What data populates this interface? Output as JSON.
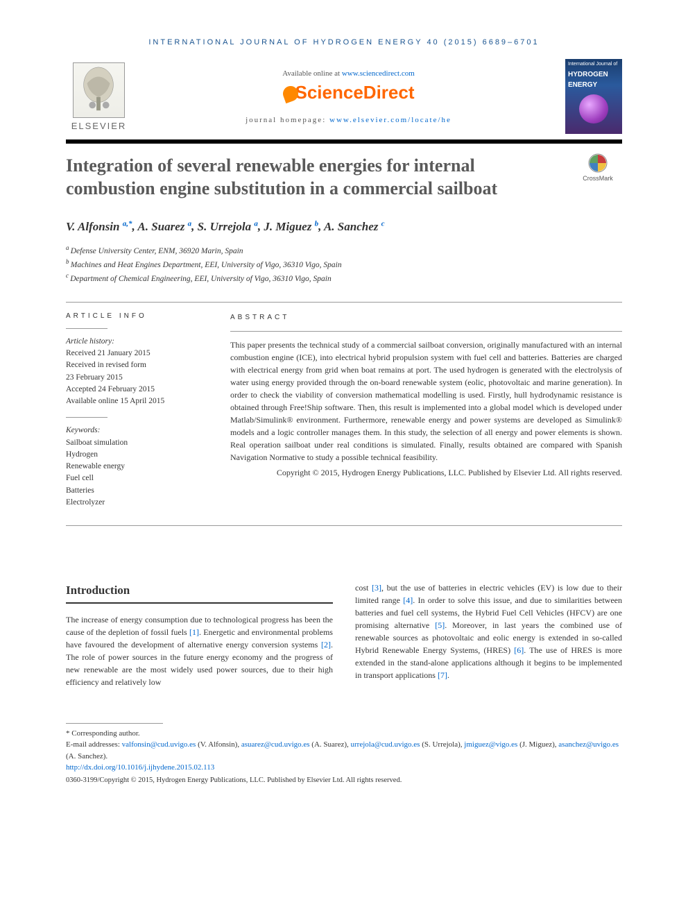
{
  "journal_header": "INTERNATIONAL JOURNAL OF HYDROGEN ENERGY 40 (2015) 6689–6701",
  "available_prefix": "Available online at ",
  "available_url": "www.sciencedirect.com",
  "sd_brand": "ScienceDirect",
  "homepage_prefix": "journal homepage: ",
  "homepage_url": "www.elsevier.com/locate/he",
  "elsevier_name": "ELSEVIER",
  "cover_top": "International Journal of",
  "cover_main1": "HYDROGEN",
  "cover_main2": "ENERGY",
  "title": "Integration of several renewable energies for internal combustion engine substitution in a commercial sailboat",
  "crossmark_label": "CrossMark",
  "authors": [
    {
      "name": "V. Alfonsin",
      "sup": "a,*"
    },
    {
      "name": "A. Suarez",
      "sup": "a"
    },
    {
      "name": "S. Urrejola",
      "sup": "a"
    },
    {
      "name": "J. Miguez",
      "sup": "b"
    },
    {
      "name": "A. Sanchez",
      "sup": "c"
    }
  ],
  "affiliations": [
    {
      "sup": "a",
      "text": "Defense University Center, ENM, 36920 Marin, Spain"
    },
    {
      "sup": "b",
      "text": "Machines and Heat Engines Department, EEI, University of Vigo, 36310 Vigo, Spain"
    },
    {
      "sup": "c",
      "text": "Department of Chemical Engineering, EEI, University of Vigo, 36310 Vigo, Spain"
    }
  ],
  "article_info_label": "ARTICLE INFO",
  "abstract_label": "ABSTRACT",
  "history_label": "Article history:",
  "history": [
    "Received 21 January 2015",
    "Received in revised form",
    "23 February 2015",
    "Accepted 24 February 2015",
    "Available online 15 April 2015"
  ],
  "keywords_label": "Keywords:",
  "keywords": [
    "Sailboat simulation",
    "Hydrogen",
    "Renewable energy",
    "Fuel cell",
    "Batteries",
    "Electrolyzer"
  ],
  "abstract_text": "This paper presents the technical study of a commercial sailboat conversion, originally manufactured with an internal combustion engine (ICE), into electrical hybrid propulsion system with fuel cell and batteries. Batteries are charged with electrical energy from grid when boat remains at port. The used hydrogen is generated with the electrolysis of water using energy provided through the on-board renewable system (eolic, photovoltaic and marine generation). In order to check the viability of conversion mathematical modelling is used. Firstly, hull hydrodynamic resistance is obtained through Free!Ship software. Then, this result is implemented into a global model which is developed under Matlab/Simulink® environment. Furthermore, renewable energy and power systems are developed as Simulink® models and a logic controller manages them. In this study, the selection of all energy and power elements is shown. Real operation sailboat under real conditions is simulated. Finally, results obtained are compared with Spanish Navigation Normative to study a possible technical feasibility.",
  "abstract_copyright": "Copyright © 2015, Hydrogen Energy Publications, LLC. Published by Elsevier Ltd. All rights reserved.",
  "intro_heading": "Introduction",
  "intro_col1_pre": "The increase of energy consumption due to technological progress has been the cause of the depletion of fossil fuels ",
  "intro_col1_ref1": "[1]",
  "intro_col1_mid1": ". Energetic and environmental problems have favoured the development of alternative energy conversion systems ",
  "intro_col1_ref2": "[2]",
  "intro_col1_end": ". The role of power sources in the future energy economy and the progress of new renewable are the most widely used power sources, due to their high efficiency and relatively low",
  "intro_col2_pre": "cost ",
  "intro_col2_ref3": "[3]",
  "intro_col2_mid1": ", but the use of batteries in electric vehicles (EV) is low due to their limited range ",
  "intro_col2_ref4": "[4]",
  "intro_col2_mid2": ". In order to solve this issue, and due to similarities between batteries and fuel cell systems, the Hybrid Fuel Cell Vehicles (HFCV) are one promising alternative ",
  "intro_col2_ref5": "[5]",
  "intro_col2_mid3": ". Moreover, in last years the combined use of renewable sources as photovoltaic and eolic energy is extended in so-called Hybrid Renewable Energy Systems, (HRES) ",
  "intro_col2_ref6": "[6]",
  "intro_col2_mid4": ". The use of HRES is more extended in the stand-alone applications although it begins to be implemented in transport applications ",
  "intro_col2_ref7": "[7]",
  "intro_col2_end": ".",
  "corresponding_label": "* Corresponding author.",
  "email_label": "E-mail addresses: ",
  "emails": [
    {
      "addr": "valfonsin@cud.uvigo.es",
      "owner": "(V. Alfonsin)"
    },
    {
      "addr": "asuarez@cud.uvigo.es",
      "owner": "(A. Suarez)"
    },
    {
      "addr": "urrejola@cud.uvigo.es",
      "owner": "(S. Urrejola)"
    },
    {
      "addr": "jmiguez@vigo.es",
      "owner": "(J. Miguez)"
    },
    {
      "addr": "asanchez@uvigo.es",
      "owner": "(A. Sanchez)"
    }
  ],
  "doi": "http://dx.doi.org/10.1016/j.ijhydene.2015.02.113",
  "footer_copyright": "0360-3199/Copyright © 2015, Hydrogen Energy Publications, LLC. Published by Elsevier Ltd. All rights reserved.",
  "colors": {
    "link": "#0066cc",
    "orange": "#ff6600",
    "header_blue": "#1a5490",
    "title_gray": "#5a5a5a"
  }
}
